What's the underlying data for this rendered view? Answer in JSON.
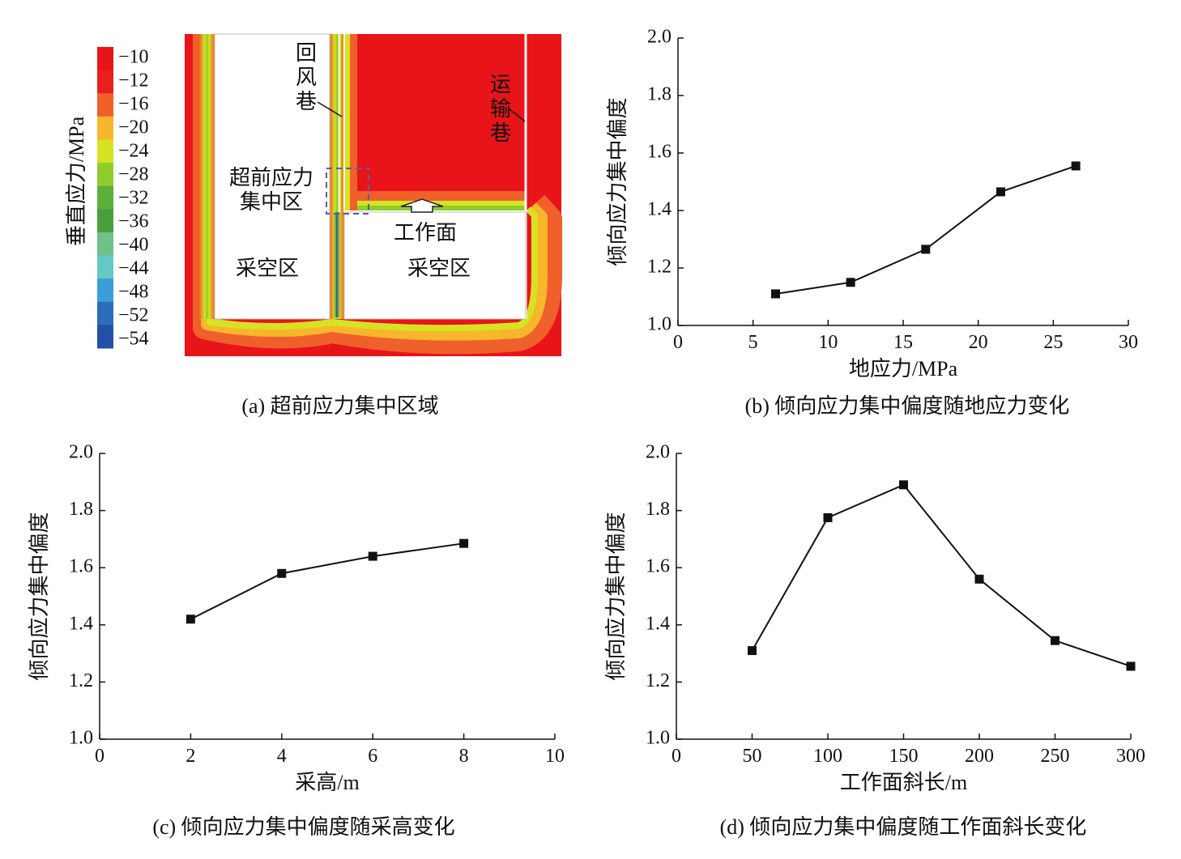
{
  "panel_a": {
    "caption": "(a)  超前应力集中区域",
    "colorbar": {
      "title": "垂直应力/MPa",
      "levels": [
        "−10",
        "−12",
        "−16",
        "−20",
        "−24",
        "−28",
        "−32",
        "−36",
        "−40",
        "−44",
        "−48",
        "−52",
        "−54"
      ],
      "colors": [
        "#e8141a",
        "#ea1d1f",
        "#f0602a",
        "#f8b62c",
        "#d6e322",
        "#8fcd2b",
        "#5bb03a",
        "#4a9f3c",
        "#70c08c",
        "#66c7c4",
        "#3a9ed8",
        "#2d6cbc",
        "#2450a8"
      ]
    },
    "labels": {
      "return_airway": "回风巷",
      "haulage_roadway": "运输巷",
      "advance_zone_line1": "超前应力",
      "advance_zone_line2": "集中区",
      "working_face": "工作面",
      "goaf_left": "采空区",
      "goaf_right": "采空区"
    },
    "colors": {
      "background": "#e8141a",
      "goaf": "#ffffff",
      "box": "#5560a8"
    }
  },
  "chart_data": [
    {
      "type": "line",
      "title": "",
      "caption": "(b) 倾向应力集中偏度随地应力变化",
      "xlabel": "地应力/MPa",
      "ylabel": "倾向应力集中偏度",
      "xlim": [
        0,
        30
      ],
      "ylim": [
        1.0,
        2.0
      ],
      "xticks": [
        "0",
        "5",
        "10",
        "15",
        "20",
        "25",
        "30"
      ],
      "yticks": [
        "1.0",
        "1.2",
        "1.4",
        "1.6",
        "1.8",
        "2.0"
      ],
      "x": [
        6.5,
        11.5,
        16.5,
        21.5,
        26.5
      ],
      "y": [
        1.11,
        1.15,
        1.265,
        1.465,
        1.555
      ],
      "grid": false
    },
    {
      "type": "line",
      "title": "",
      "caption": "(c) 倾向应力集中偏度随采高变化",
      "xlabel": "采高/m",
      "ylabel": "倾向应力集中偏度",
      "xlim": [
        0,
        10
      ],
      "ylim": [
        1.0,
        2.0
      ],
      "xticks": [
        "0",
        "2",
        "4",
        "6",
        "8",
        "10"
      ],
      "yticks": [
        "1.0",
        "1.2",
        "1.4",
        "1.6",
        "1.8",
        "2.0"
      ],
      "x": [
        2,
        4,
        6,
        8
      ],
      "y": [
        1.42,
        1.58,
        1.64,
        1.685
      ],
      "grid": false
    },
    {
      "type": "line",
      "title": "",
      "caption": "(d) 倾向应力集中偏度随工作面斜长变化",
      "xlabel": "工作面斜长/m",
      "ylabel": "倾向应力集中偏度",
      "xlim": [
        0,
        300
      ],
      "ylim": [
        1.0,
        2.0
      ],
      "xticks": [
        "0",
        "50",
        "100",
        "150",
        "200",
        "250",
        "300"
      ],
      "yticks": [
        "1.0",
        "1.2",
        "1.4",
        "1.6",
        "1.8",
        "2.0"
      ],
      "x": [
        50,
        100,
        150,
        200,
        250,
        300
      ],
      "y": [
        1.31,
        1.775,
        1.89,
        1.56,
        1.345,
        1.255
      ],
      "grid": false
    }
  ]
}
